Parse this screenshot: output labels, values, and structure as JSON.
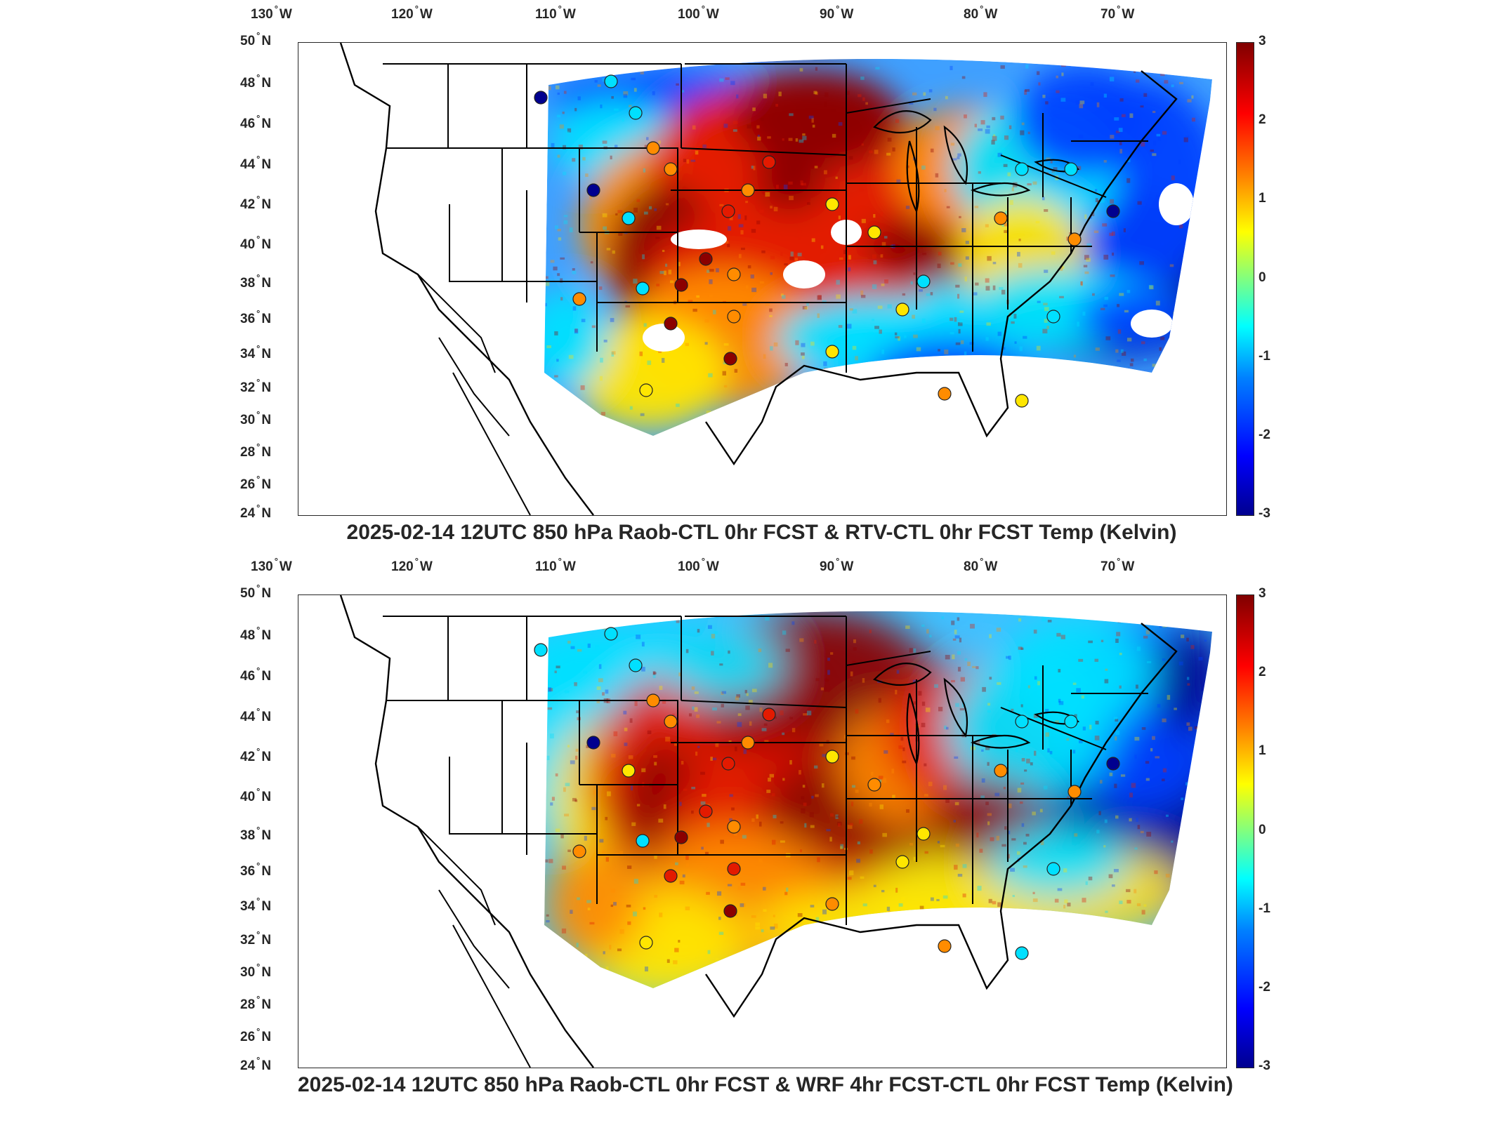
{
  "panels": [
    {
      "title": "2025-02-14 12UTC 850 hPa Raob-CTL 0hr FCST & RTV-CTL 0hr FCST Temp (Kelvin)",
      "variant": "rtv"
    },
    {
      "title": "2025-02-14 12UTC 850 hPa Raob-CTL 0hr FCST & WRF 4hr FCST-CTL 0hr FCST Temp (Kelvin)",
      "variant": "wrf"
    }
  ],
  "axes": {
    "lon_labels": [
      {
        "value": "130",
        "hem": "W"
      },
      {
        "value": "120",
        "hem": "W"
      },
      {
        "value": "110",
        "hem": "W"
      },
      {
        "value": "100",
        "hem": "W"
      },
      {
        "value": "90",
        "hem": "W"
      },
      {
        "value": "80",
        "hem": "W"
      },
      {
        "value": "70",
        "hem": "W"
      }
    ],
    "lat_labels": [
      {
        "value": "50",
        "hem": "N"
      },
      {
        "value": "48",
        "hem": "N"
      },
      {
        "value": "46",
        "hem": "N"
      },
      {
        "value": "44",
        "hem": "N"
      },
      {
        "value": "42",
        "hem": "N"
      },
      {
        "value": "40",
        "hem": "N"
      },
      {
        "value": "38",
        "hem": "N"
      },
      {
        "value": "36",
        "hem": "N"
      },
      {
        "value": "34",
        "hem": "N"
      },
      {
        "value": "32",
        "hem": "N"
      },
      {
        "value": "30",
        "hem": "N"
      },
      {
        "value": "28",
        "hem": "N"
      },
      {
        "value": "26",
        "hem": "N"
      },
      {
        "value": "24",
        "hem": "N"
      }
    ]
  },
  "colorbar": {
    "ticks": [
      "3",
      "2",
      "1",
      "0",
      "-1",
      "-2",
      "-3"
    ],
    "min": -3,
    "max": 3
  },
  "colors": {
    "dark_red": "#8b0000",
    "red": "#e31a00",
    "orange": "#ff8c00",
    "yellow": "#ffe600",
    "cyan": "#00e0ff",
    "blue": "#0040ff",
    "dark_blue": "#00008f"
  }
}
